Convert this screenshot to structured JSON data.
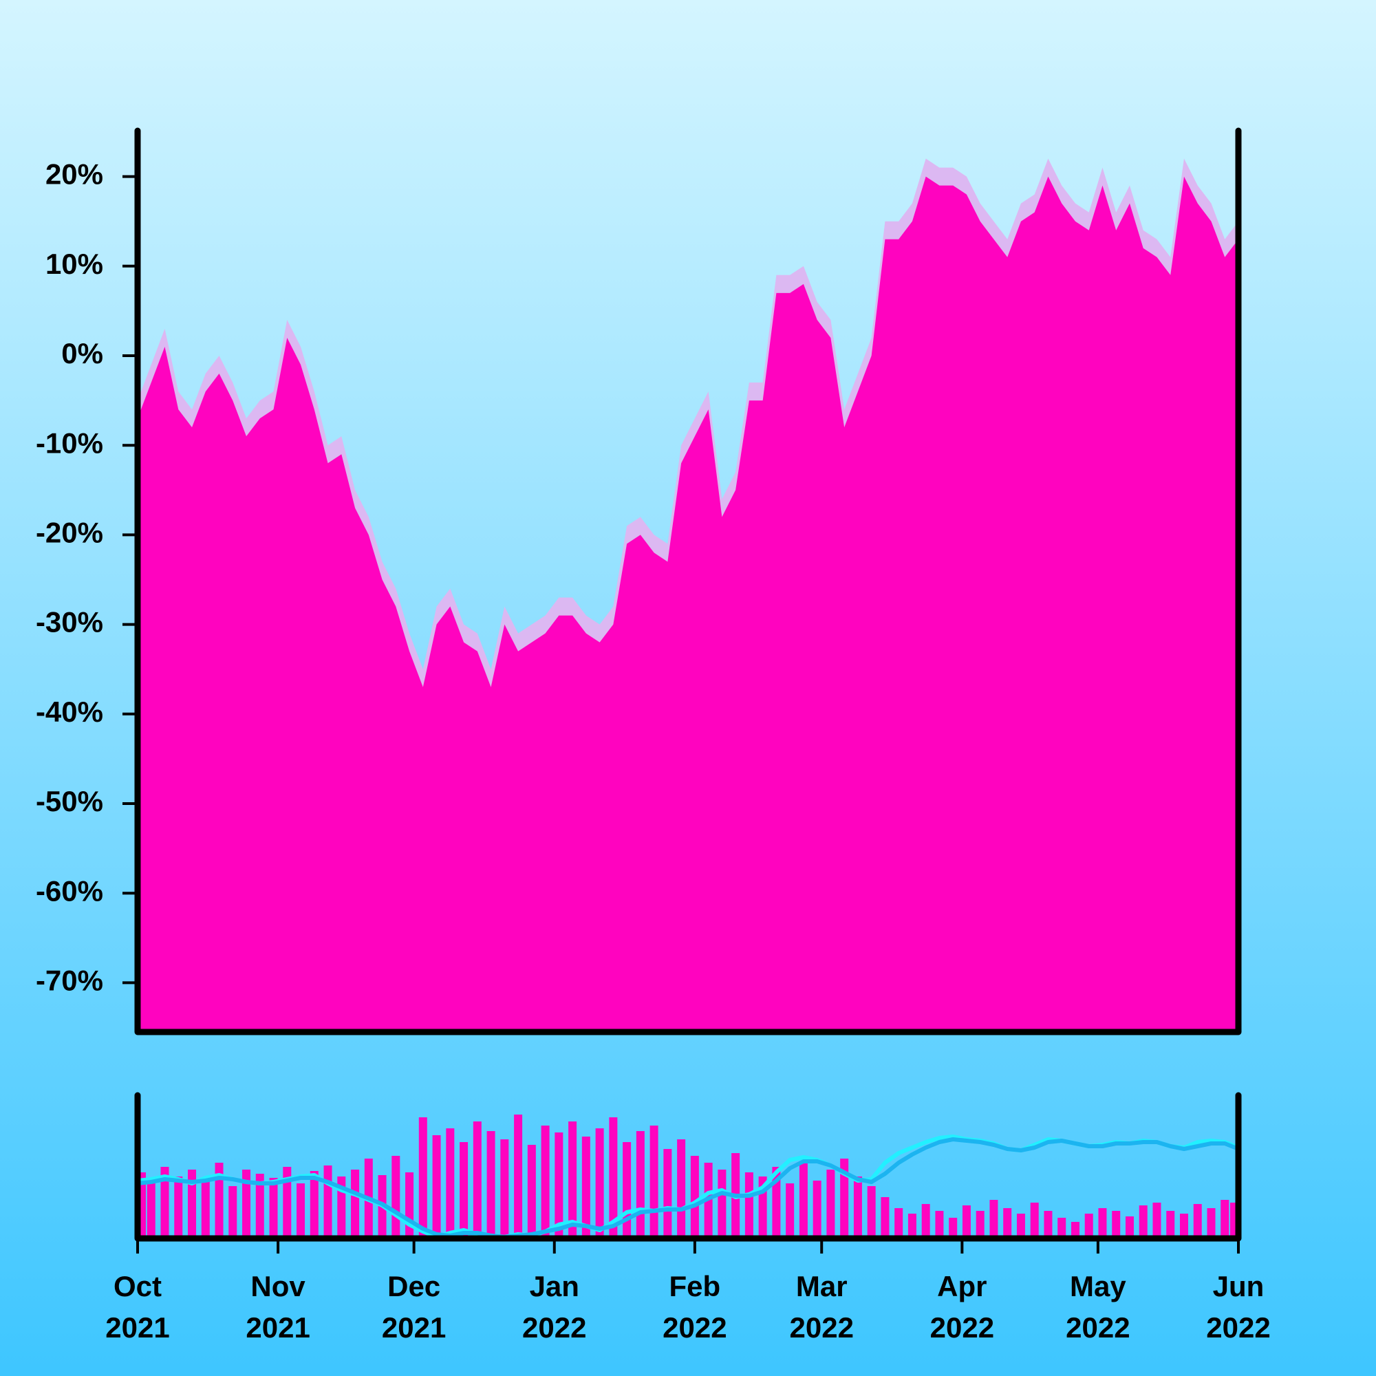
{
  "chart_data": [
    {
      "type": "area",
      "x": [
        0,
        3,
        6,
        9,
        12,
        15,
        18,
        21,
        24,
        27,
        30,
        33,
        36,
        39,
        42,
        45,
        48,
        51,
        54,
        57,
        60,
        63,
        66,
        69,
        72,
        75,
        78,
        81,
        84,
        87,
        90,
        93,
        96,
        99,
        102,
        105,
        108,
        111,
        114,
        117,
        120,
        123,
        126,
        129,
        132,
        135,
        138,
        141,
        144,
        147,
        150,
        153,
        156,
        159,
        162,
        165,
        168,
        171,
        174,
        177,
        180,
        183,
        186,
        189,
        192,
        195,
        198,
        201,
        204,
        207,
        210,
        213,
        216,
        219,
        222,
        225,
        228,
        231,
        234,
        237,
        240,
        243
      ],
      "xlim": [
        0,
        243
      ],
      "ylim": [
        -75.5,
        24.5
      ],
      "yticks": [
        {
          "value": -70,
          "label": "-70%"
        },
        {
          "value": -60,
          "label": "-60%"
        },
        {
          "value": -50,
          "label": "-50%"
        },
        {
          "value": -40,
          "label": "-40%"
        },
        {
          "value": -30,
          "label": "-30%"
        },
        {
          "value": -20,
          "label": "-20%"
        },
        {
          "value": -10,
          "label": "-10%"
        },
        {
          "value": 0,
          "label": "0%"
        },
        {
          "value": 10,
          "label": "10%"
        },
        {
          "value": 20,
          "label": "20%"
        }
      ],
      "series": [
        {
          "color": "#dcb8f2",
          "values": [
            -5,
            -1,
            3,
            -4,
            -6,
            -2,
            0,
            -3,
            -7,
            -5,
            -4,
            4,
            1,
            -4,
            -10,
            -9,
            -15,
            -18,
            -23,
            -26,
            -31,
            -35,
            -28,
            -26,
            -30,
            -31,
            -35,
            -28,
            -31,
            -30,
            -29,
            -27,
            -27,
            -29,
            -30,
            -28,
            -19,
            -18,
            -20,
            -21,
            -10,
            -7,
            -4,
            -16,
            -13,
            -3,
            -3,
            9,
            9,
            10,
            6,
            4,
            -6,
            -2,
            2,
            15,
            15,
            17,
            22,
            21,
            21,
            20,
            17,
            15,
            13,
            17,
            18,
            22,
            19,
            17,
            16,
            21,
            16,
            19,
            14,
            13,
            11,
            22,
            19,
            17,
            13,
            15
          ]
        },
        {
          "color": "#ff03bf",
          "values": [
            -7,
            -3,
            1,
            -6,
            -8,
            -4,
            -2,
            -5,
            -9,
            -7,
            -6,
            2,
            -1,
            -6,
            -12,
            -11,
            -17,
            -20,
            -25,
            -28,
            -33,
            -37,
            -30,
            -28,
            -32,
            -33,
            -37,
            -30,
            -33,
            -32,
            -31,
            -29,
            -29,
            -31,
            -32,
            -30,
            -21,
            -20,
            -22,
            -23,
            -12,
            -9,
            -6,
            -18,
            -15,
            -5,
            -5,
            7,
            7,
            8,
            4,
            2,
            -8,
            -4,
            0,
            13,
            13,
            15,
            20,
            19,
            19,
            18,
            15,
            13,
            11,
            15,
            16,
            20,
            17,
            15,
            14,
            19,
            14,
            17,
            12,
            11,
            9,
            20,
            17,
            15,
            11,
            13
          ]
        }
      ]
    },
    {
      "type": "bar",
      "x": [
        0,
        3,
        6,
        9,
        12,
        15,
        18,
        21,
        24,
        27,
        30,
        33,
        36,
        39,
        42,
        45,
        48,
        51,
        54,
        57,
        60,
        63,
        66,
        69,
        72,
        75,
        78,
        81,
        84,
        87,
        90,
        93,
        96,
        99,
        102,
        105,
        108,
        111,
        114,
        117,
        120,
        123,
        126,
        129,
        132,
        135,
        138,
        141,
        144,
        147,
        150,
        153,
        156,
        159,
        162,
        165,
        168,
        171,
        174,
        177,
        180,
        183,
        186,
        189,
        192,
        195,
        198,
        201,
        204,
        207,
        210,
        213,
        216,
        219,
        222,
        225,
        228,
        231,
        234,
        237,
        240,
        243
      ],
      "xlim": [
        0,
        243
      ],
      "ylim": [
        0,
        100
      ],
      "xticks": [
        {
          "value": 0,
          "label": "Oct\n2021"
        },
        {
          "value": 31,
          "label": "Nov\n2021"
        },
        {
          "value": 61,
          "label": "Dec\n2021"
        },
        {
          "value": 92,
          "label": "Jan\n2022"
        },
        {
          "value": 123,
          "label": "Feb\n2022"
        },
        {
          "value": 151,
          "label": "Mar\n2022"
        },
        {
          "value": 182,
          "label": "Apr\n2022"
        },
        {
          "value": 212,
          "label": "May\n2022"
        },
        {
          "value": 243,
          "label": "Jun\n2022"
        }
      ],
      "series": [
        {
          "type": "bar",
          "color": "#ff03bf",
          "values": [
            48,
            40,
            52,
            45,
            50,
            42,
            55,
            38,
            50,
            47,
            44,
            52,
            40,
            49,
            53,
            45,
            50,
            58,
            46,
            60,
            48,
            88,
            75,
            80,
            70,
            85,
            78,
            72,
            90,
            68,
            82,
            77,
            85,
            74,
            80,
            88,
            70,
            78,
            82,
            65,
            72,
            60,
            55,
            50,
            62,
            48,
            45,
            52,
            40,
            55,
            42,
            50,
            58,
            45,
            38,
            30,
            22,
            18,
            25,
            20,
            15,
            24,
            20,
            28,
            22,
            18,
            26,
            20,
            15,
            12,
            18,
            22,
            20,
            16,
            24,
            26,
            20,
            18,
            25,
            22,
            28,
            26
          ]
        },
        {
          "type": "line",
          "color": "#22f0ff",
          "values": [
            42,
            43,
            45,
            43,
            40,
            44,
            46,
            43,
            41,
            40,
            41,
            43,
            45,
            46,
            40,
            35,
            32,
            28,
            24,
            17,
            10,
            5,
            1,
            4,
            6,
            3,
            2,
            1,
            3,
            2,
            5,
            10,
            12,
            9,
            6,
            12,
            19,
            21,
            20,
            22,
            21,
            26,
            33,
            35,
            30,
            32,
            37,
            48,
            57,
            59,
            57,
            53,
            47,
            42,
            43,
            55,
            62,
            66,
            70,
            73,
            74,
            72,
            71,
            69,
            65,
            64,
            68,
            72,
            71,
            69,
            67,
            68,
            70,
            69,
            71,
            70,
            67,
            66,
            70,
            71,
            70,
            66
          ]
        },
        {
          "type": "line",
          "color": "#1cb4f0",
          "values": [
            40,
            41,
            43,
            42,
            41,
            42,
            44,
            43,
            41,
            40,
            40,
            42,
            44,
            44,
            41,
            37,
            33,
            29,
            25,
            19,
            13,
            7,
            3,
            2,
            4,
            4,
            2,
            1,
            2,
            3,
            5,
            7,
            10,
            9,
            7,
            9,
            14,
            19,
            20,
            21,
            21,
            24,
            29,
            33,
            31,
            31,
            34,
            42,
            51,
            56,
            56,
            53,
            48,
            43,
            41,
            47,
            55,
            61,
            66,
            70,
            72,
            71,
            70,
            68,
            65,
            64,
            66,
            70,
            71,
            69,
            67,
            67,
            69,
            69,
            70,
            70,
            67,
            65,
            67,
            69,
            69,
            65
          ]
        }
      ]
    }
  ]
}
